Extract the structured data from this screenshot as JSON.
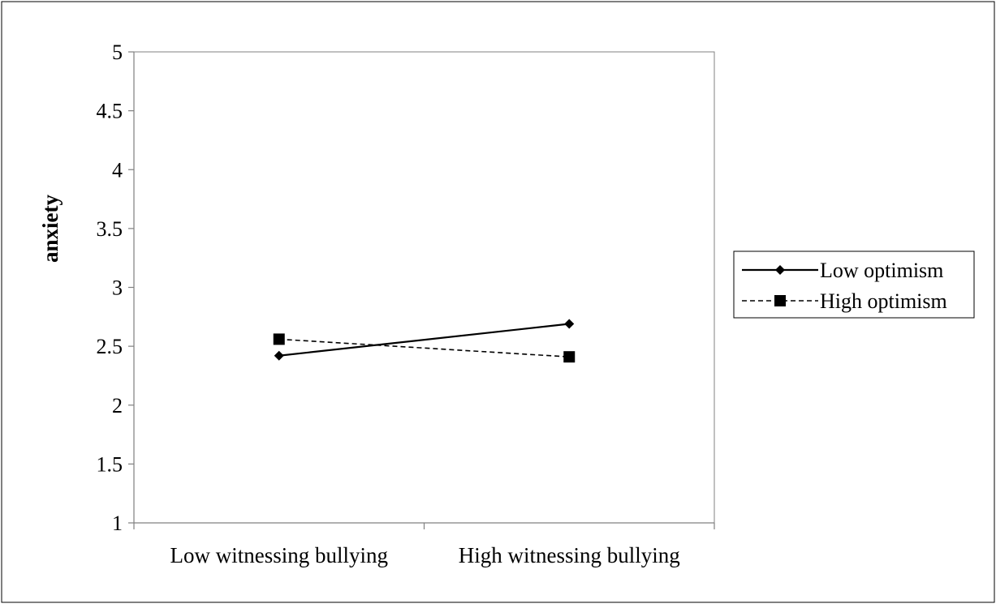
{
  "chart_data": {
    "type": "line",
    "title": "",
    "xlabel": "",
    "ylabel": "anxiety",
    "ylim": [
      1,
      5
    ],
    "yticks": [
      1,
      1.5,
      2,
      2.5,
      3,
      3.5,
      4,
      4.5,
      5
    ],
    "grid": false,
    "legend_position": "right",
    "categories": [
      "Low witnessing bullying",
      "High witnessing bullying"
    ],
    "series": [
      {
        "name": "Low optimism",
        "values": [
          2.42,
          2.69
        ],
        "line_style": "solid",
        "marker": "diamond",
        "color": "#000000"
      },
      {
        "name": "High optimism",
        "values": [
          2.56,
          2.41
        ],
        "line_style": "dashed",
        "marker": "square",
        "color": "#000000"
      }
    ]
  }
}
